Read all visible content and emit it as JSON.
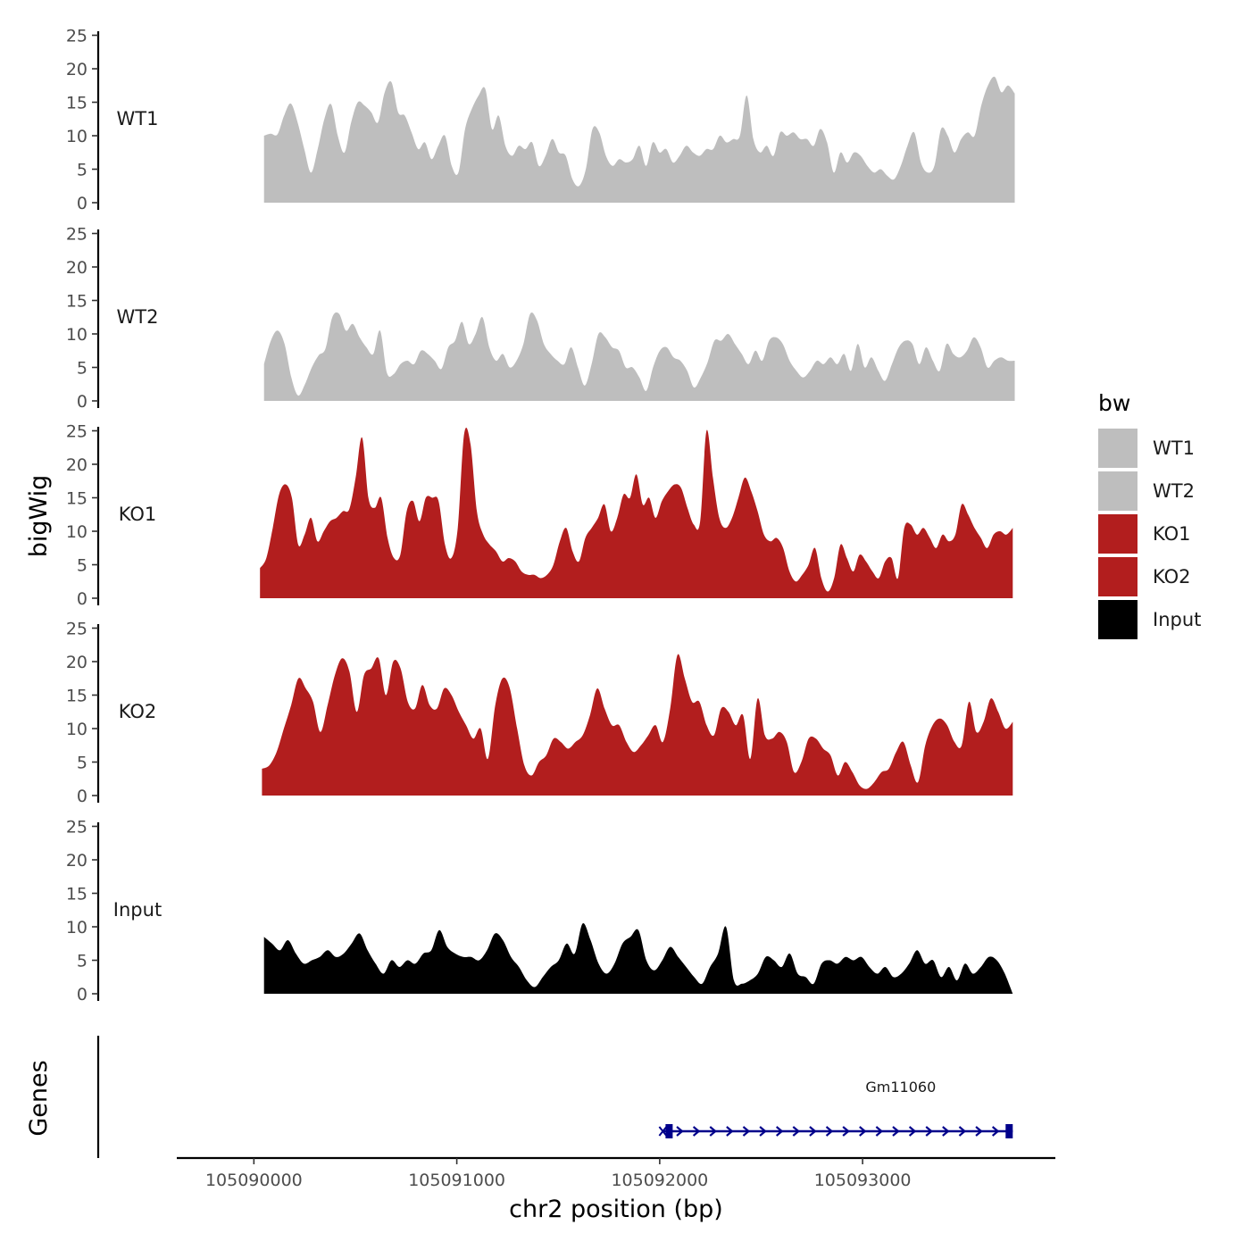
{
  "chart_data": {
    "type": "area",
    "chromosome": "chr2",
    "xlabel": "chr2 position (bp)",
    "ylabel": "bigWig",
    "genes_label": "Genes",
    "xlim": [
      105089620,
      105093950
    ],
    "x_ticks": [
      105090000,
      105091000,
      105092000,
      105093000
    ],
    "x_tick_labels": [
      "105090000",
      "105091000",
      "105092000",
      "105093000"
    ],
    "ylim": [
      0,
      26
    ],
    "y_ticks": [
      0,
      5,
      10,
      15,
      20,
      25
    ],
    "y_tick_labels": [
      "0",
      "5",
      "10",
      "15",
      "20",
      "25"
    ],
    "legend": {
      "title": "bw",
      "position": "right"
    },
    "series": [
      {
        "name": "WT1",
        "color": "#bebebe",
        "x_start": 105090050,
        "x_end": 105093750,
        "values": [
          10,
          10.3,
          10.2,
          13,
          14.8,
          12,
          8,
          4.5,
          8,
          12.5,
          14.7,
          10,
          7.5,
          12,
          15,
          14.5,
          13.5,
          12,
          16.5,
          18,
          13.5,
          13,
          10.5,
          8,
          9,
          6.5,
          8.5,
          10,
          5.5,
          4.5,
          11,
          14,
          16,
          17,
          11,
          13,
          8.5,
          7,
          8.5,
          8,
          9,
          5.5,
          7,
          9.5,
          7.5,
          7,
          3.5,
          2.5,
          5,
          11,
          10.5,
          7,
          5.5,
          6.5,
          6,
          6.5,
          8.5,
          5.5,
          9,
          7.5,
          8,
          6,
          7,
          8.5,
          7.5,
          7,
          8,
          8,
          10,
          9,
          9.5,
          10,
          16,
          9.5,
          7.5,
          8.5,
          7,
          10.5,
          10,
          10.5,
          9.5,
          9.5,
          8.5,
          11,
          9,
          4.5,
          7.5,
          6,
          7.5,
          7,
          5.5,
          4.5,
          5,
          4,
          3.5,
          5.5,
          8.5,
          10.5,
          6,
          4.5,
          5.5,
          11,
          10,
          7.5,
          9.5,
          10.5,
          10,
          14.5,
          17.5,
          18.8,
          16.5,
          17.5,
          16.3
        ]
      },
      {
        "name": "WT2",
        "color": "#bebebe",
        "x_start": 105090050,
        "x_end": 105093750,
        "values": [
          5.5,
          9,
          10.5,
          8.5,
          3.5,
          0.8,
          2.5,
          5,
          6.8,
          7.8,
          12.5,
          13,
          10.5,
          11.5,
          9.5,
          8,
          7,
          10.5,
          4.2,
          4,
          5.5,
          6,
          5.5,
          7.5,
          7,
          6,
          4.8,
          8,
          9,
          11.8,
          8.5,
          10,
          12.5,
          8,
          6,
          7,
          5,
          6,
          8.5,
          13,
          12,
          8.5,
          7,
          6,
          5.5,
          8,
          5,
          2.3,
          5.5,
          10,
          9.5,
          8,
          7.5,
          5,
          5,
          3.5,
          1.5,
          5,
          7.5,
          8,
          6.5,
          6,
          4.5,
          2,
          3.5,
          5.8,
          9,
          9,
          10,
          8.5,
          7,
          5.5,
          7.5,
          6,
          9,
          9.5,
          8.5,
          6,
          4.5,
          3.5,
          4.5,
          6,
          5.5,
          6.5,
          5.5,
          7,
          4.5,
          8.5,
          5,
          6.5,
          4.5,
          3,
          5.5,
          8,
          9,
          8.5,
          5.5,
          8,
          6,
          4.5,
          8.5,
          7,
          6.5,
          7.5,
          9.5,
          8,
          5,
          6,
          6.5,
          6,
          6
        ]
      },
      {
        "name": "KO1",
        "color": "#b21e1e",
        "x_start": 105090030,
        "x_end": 105093740,
        "values": [
          4.5,
          6,
          10.5,
          15.5,
          17,
          15,
          8,
          9.5,
          12,
          8.5,
          10,
          11.5,
          12,
          13,
          13.3,
          18,
          24,
          15,
          13.5,
          15,
          9,
          6,
          6.5,
          13,
          14.5,
          11.5,
          15,
          15,
          14.5,
          8,
          6,
          10.5,
          24.5,
          23,
          13,
          9.5,
          8,
          7,
          5.5,
          6,
          5.5,
          4,
          3.5,
          3.5,
          3,
          3.5,
          5,
          8.5,
          10.5,
          7,
          5.5,
          9,
          10.5,
          12,
          14,
          10,
          12,
          15.5,
          15,
          18.5,
          14,
          15,
          12,
          14.5,
          16,
          17,
          16.5,
          13.5,
          11,
          11.5,
          25,
          18,
          12,
          10.5,
          12,
          15,
          18,
          16,
          13,
          9.5,
          8.5,
          9,
          7.5,
          4,
          2.5,
          3.5,
          5,
          7.5,
          3,
          1,
          3,
          8,
          6,
          4,
          6.5,
          5.5,
          4,
          3,
          5.5,
          6,
          3,
          10.5,
          11,
          9.5,
          10.5,
          9,
          7.5,
          9.5,
          8.5,
          9.5,
          14,
          12.5,
          10.5,
          9,
          7.5,
          9.5,
          10,
          9.5,
          10.5
        ]
      },
      {
        "name": "KO2",
        "color": "#b21e1e",
        "x_start": 105090040,
        "x_end": 105093740,
        "values": [
          4,
          4.5,
          6.5,
          10,
          13.5,
          17.5,
          16,
          14,
          9.5,
          13.5,
          18,
          20.5,
          18.5,
          12.5,
          18,
          19,
          20.5,
          15,
          20,
          19,
          14,
          13,
          16.5,
          13.5,
          13,
          16,
          15,
          12.5,
          10.5,
          8.5,
          10,
          5.5,
          13.5,
          17.5,
          16,
          10,
          4.5,
          3,
          5,
          6,
          8.5,
          8,
          7,
          8,
          9,
          12,
          16,
          13,
          10.5,
          10.5,
          8,
          6.5,
          7.5,
          9,
          10.5,
          8,
          13,
          21,
          17.5,
          14,
          14,
          10.5,
          9,
          13,
          12.5,
          10.5,
          12,
          5.5,
          14.5,
          9,
          8.5,
          9.5,
          8,
          3.5,
          5,
          8.5,
          8.5,
          7,
          6,
          3,
          5,
          3.5,
          1.5,
          1,
          2,
          3.5,
          4,
          6.5,
          8,
          4.5,
          2,
          7.5,
          10.5,
          11.5,
          10.5,
          8,
          7.5,
          14,
          9.5,
          11,
          14.5,
          12.5,
          10,
          11
        ]
      },
      {
        "name": "Input",
        "color": "#000000",
        "x_start": 105090050,
        "x_end": 105093740,
        "values": [
          8.5,
          7.5,
          6.5,
          8,
          6,
          4.5,
          5,
          5.5,
          6.5,
          5.5,
          6,
          7.5,
          9,
          6.5,
          4.5,
          3,
          5,
          4,
          5,
          4.5,
          6,
          6.5,
          9.5,
          7,
          6,
          5.5,
          5.5,
          5,
          6.5,
          9,
          8,
          5.5,
          4,
          2,
          1,
          2.5,
          4,
          5,
          7.5,
          6,
          10.5,
          8,
          4.5,
          3,
          4.5,
          7.5,
          8.5,
          9.5,
          5,
          3.5,
          5,
          7,
          5.5,
          4,
          2.5,
          1.5,
          4,
          6,
          10,
          2,
          1.5,
          2,
          3,
          5.5,
          5,
          4,
          6,
          3,
          2.5,
          1.5,
          4.5,
          5,
          4.5,
          5.5,
          5,
          5.5,
          4,
          3,
          4,
          2.5,
          3,
          4.5,
          6.5,
          4.5,
          5,
          2.5,
          4,
          2,
          4.5,
          3,
          4,
          5.5,
          5,
          3,
          0
        ]
      }
    ],
    "genes": [
      {
        "name": "Gm11060",
        "start": 105092020,
        "end": 105093740,
        "strand": "+",
        "color": "#00008b"
      }
    ]
  }
}
